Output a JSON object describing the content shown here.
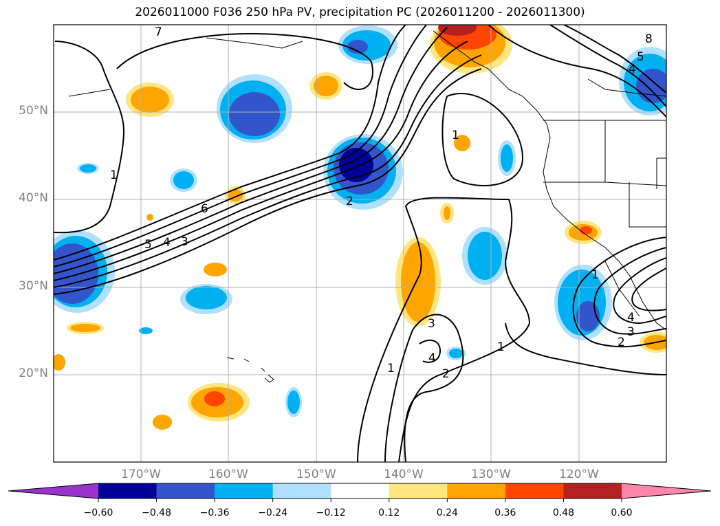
{
  "title": "2026011000 F036 250 hPa PV, precipitation PC (2026011200 - 2026011300)",
  "map": {
    "lat_labels": [
      "50°N",
      "40°N",
      "30°N",
      "20°N"
    ],
    "lon_labels": [
      "170°W",
      "160°W",
      "150°W",
      "140°W",
      "130°W",
      "120°W"
    ],
    "contour_labels": [
      "7",
      "6",
      "5",
      "4",
      "3",
      "2",
      "1",
      "1",
      "1",
      "1",
      "3",
      "4",
      "2",
      "1",
      "4",
      "3",
      "2",
      "8",
      "4",
      "5"
    ]
  },
  "colorbar": {
    "ticks": [
      "−0.60",
      "−0.48",
      "−0.36",
      "−0.24",
      "−0.12",
      "0.12",
      "0.24",
      "0.36",
      "0.48",
      "0.60"
    ],
    "colors": [
      "#9933cc",
      "#000099",
      "#3355cc",
      "#00b0f0",
      "#b0e0ff",
      "#ffffff",
      "#ffe680",
      "#ffa500",
      "#ff4500",
      "#b22222",
      "#ff88aa"
    ]
  }
}
